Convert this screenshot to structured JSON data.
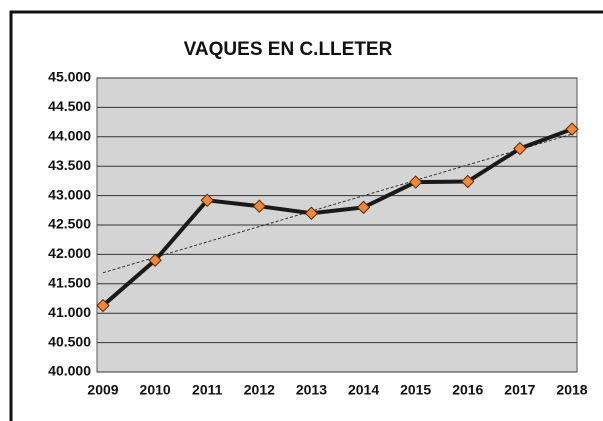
{
  "chart_data": {
    "type": "line",
    "title": "VAQUES EN C.LLETER",
    "categories": [
      "2009",
      "2010",
      "2011",
      "2012",
      "2013",
      "2014",
      "2015",
      "2016",
      "2017",
      "2018"
    ],
    "values": [
      41130,
      41900,
      42920,
      42820,
      42700,
      42800,
      43230,
      43240,
      43800,
      44130
    ],
    "color": "#1a1a1a",
    "marker_color": "#f0883a",
    "ylim": [
      40000,
      45000
    ],
    "yticks": [
      {
        "value": 40000,
        "label": "40.000"
      },
      {
        "value": 40500,
        "label": "40.500"
      },
      {
        "value": 41000,
        "label": "41.000"
      },
      {
        "value": 41500,
        "label": "41.500"
      },
      {
        "value": 42000,
        "label": "42.000"
      },
      {
        "value": 42500,
        "label": "42.500"
      },
      {
        "value": 43000,
        "label": "43.000"
      },
      {
        "value": 43500,
        "label": "43.500"
      },
      {
        "value": 44000,
        "label": "44.000"
      },
      {
        "value": 44500,
        "label": "44.500"
      },
      {
        "value": 45000,
        "label": "45.000"
      }
    ],
    "grid": true,
    "trendline": "linear"
  }
}
